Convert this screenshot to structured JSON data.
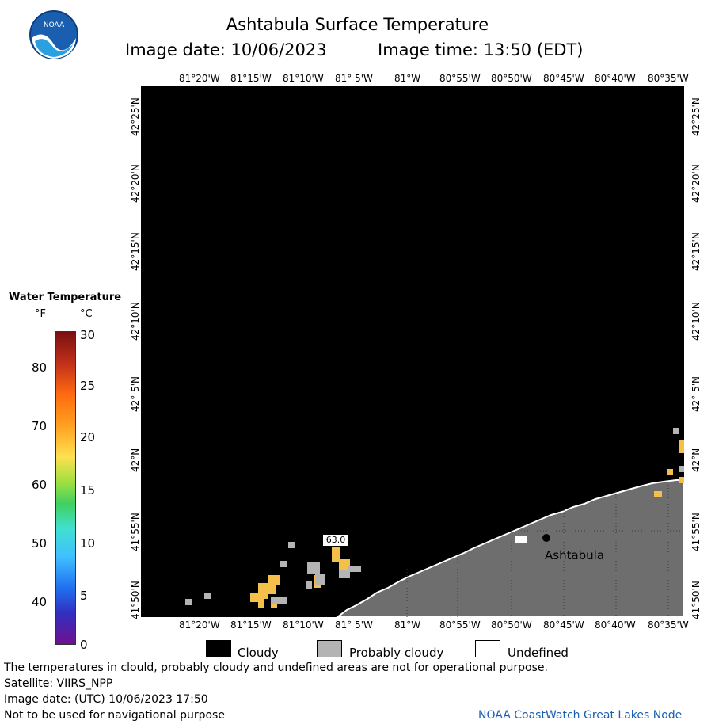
{
  "header": {
    "title": "Ashtabula Surface Temperature",
    "image_date": "Image date: 10/06/2023",
    "image_time": "Image time: 13:50 (EDT)"
  },
  "map": {
    "lon_labels": [
      "81°20'W",
      "81°15'W",
      "81°10'W",
      "81° 5'W",
      "81°W",
      "80°55'W",
      "80°50'W",
      "80°45'W",
      "80°40'W",
      "80°35'W"
    ],
    "lat_labels": [
      "42°25'N",
      "42°20'N",
      "42°15'N",
      "42°10'N",
      "42° 5'N",
      "42°N",
      "41°55'N",
      "41°50'N"
    ],
    "city_label": "Ashtabula",
    "value_label": "63.0",
    "colors": {
      "water_cloudy": "#000000",
      "land": "#6e6e6e",
      "probably_cloudy": "#b4b4b4",
      "warm_water": "#f5c04a"
    }
  },
  "colorbar": {
    "title": "Water Temperature",
    "unit_f": "°F",
    "unit_c": "°C",
    "f_ticks": [
      "80",
      "70",
      "60",
      "50",
      "40"
    ],
    "c_ticks": [
      "30",
      "25",
      "20",
      "15",
      "10",
      "5",
      "0"
    ]
  },
  "legend": {
    "items": [
      {
        "label": "Cloudy",
        "color": "#000000"
      },
      {
        "label": "Probably cloudy",
        "color": "#b4b4b4"
      },
      {
        "label": "Undefined",
        "color": "#ffffff"
      }
    ]
  },
  "footer": {
    "disclaimer": "The temperatures in clould, probably cloudy and undefined areas are not for operational purpose.",
    "satellite": "Satellite: VIIRS_NPP",
    "utc_date": "Image date: (UTC) 10/06/2023  17:50",
    "navigation": "Not to be used for navigational purpose",
    "credit": "NOAA CoastWatch Great Lakes Node"
  }
}
